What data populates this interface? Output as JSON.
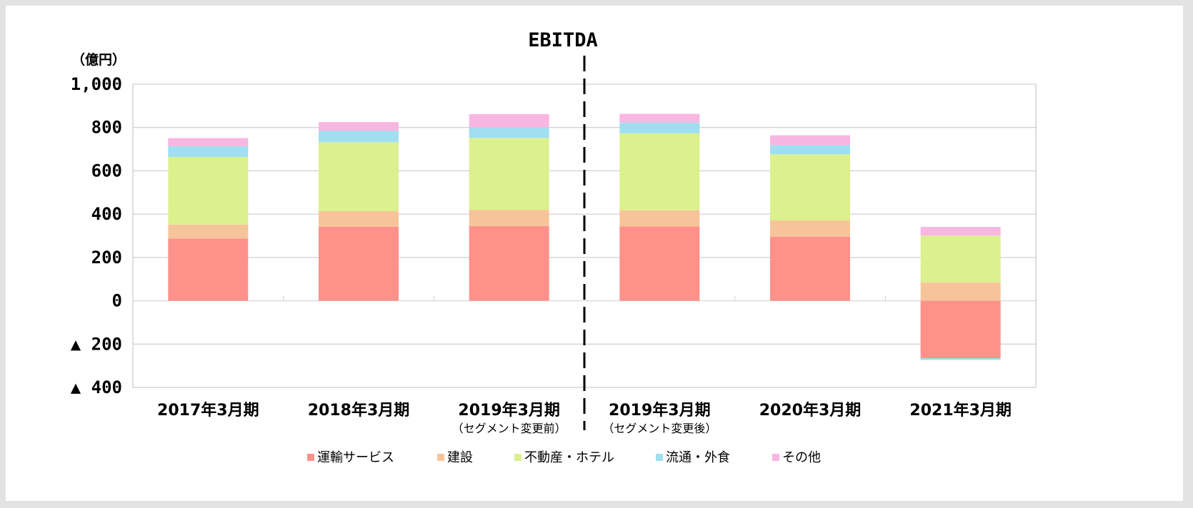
{
  "chart_data": {
    "type": "bar",
    "stacked": true,
    "title": "EBITDA",
    "ylabel": "（億円）",
    "ylim": [
      -400,
      1000
    ],
    "yticks": [
      {
        "value": 1000,
        "label": "1,000"
      },
      {
        "value": 800,
        "label": "800"
      },
      {
        "value": 600,
        "label": "600"
      },
      {
        "value": 400,
        "label": "400"
      },
      {
        "value": 200,
        "label": "200"
      },
      {
        "value": 0,
        "label": "0"
      },
      {
        "value": -200,
        "label": "▲ 200"
      },
      {
        "value": -400,
        "label": "▲ 400"
      }
    ],
    "grid": true,
    "legend_position": "bottom",
    "divider_after_category": 3,
    "categories": [
      {
        "label": "2017年3月期",
        "note": ""
      },
      {
        "label": "2018年3月期",
        "note": ""
      },
      {
        "label": "2019年3月期",
        "note": "（セグメント変更前）"
      },
      {
        "label": "2019年3月期",
        "note": "（セグメント変更後）"
      },
      {
        "label": "2020年3月期",
        "note": ""
      },
      {
        "label": "2021年3月期",
        "note": ""
      }
    ],
    "series": [
      {
        "name": "運輸サービス",
        "color": "#ff918b",
        "values": [
          287,
          342,
          345,
          343,
          296,
          -265
        ]
      },
      {
        "name": "建設",
        "color": "#f7c49a",
        "values": [
          65,
          72,
          75,
          75,
          75,
          84
        ]
      },
      {
        "name": "不動産・ホテル",
        "color": "#dcf08e",
        "values": [
          312,
          318,
          332,
          355,
          305,
          217
        ]
      },
      {
        "name": "流通・外食",
        "color": "#a0dff0",
        "values": [
          50,
          53,
          48,
          50,
          43,
          -8
        ]
      },
      {
        "name": "その他",
        "color": "#f8b6e2",
        "values": [
          37,
          40,
          62,
          40,
          45,
          40
        ]
      }
    ]
  }
}
